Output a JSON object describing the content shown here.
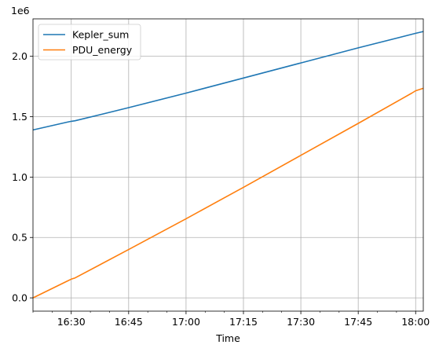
{
  "chart_data": {
    "type": "line",
    "xlabel": "Time",
    "ylabel": "",
    "y_offset_label": "1e6",
    "xlim": [
      "16:20",
      "18:02"
    ],
    "ylim": [
      -0.11,
      2.31
    ],
    "y_scale": 1000000,
    "grid": true,
    "legend_position": "upper-left",
    "x_ticks": [
      "16:30",
      "16:45",
      "17:00",
      "17:15",
      "17:30",
      "17:45",
      "18:00"
    ],
    "x_tick_labels": [
      "16:30",
      "16:45",
      "17:00",
      "17:15",
      "17:30",
      "17:45",
      "18:00"
    ],
    "y_ticks": [
      0.0,
      0.5,
      1.0,
      1.5,
      2.0
    ],
    "y_tick_labels": [
      "0.0",
      "0.5",
      "1.0",
      "1.5",
      "2.0"
    ],
    "series": [
      {
        "name": "Kepler_sum",
        "color": "#1f77b4",
        "x": [
          "16:20",
          "16:29",
          "16:30",
          "16:31",
          "16:45",
          "17:00",
          "17:15",
          "17:30",
          "17:45",
          "18:00",
          "18:02"
        ],
        "y": [
          1.39,
          1.455,
          1.462,
          1.466,
          1.575,
          1.695,
          1.82,
          1.945,
          2.07,
          2.19,
          2.205
        ]
      },
      {
        "name": "PDU_energy",
        "color": "#ff7f0e",
        "x": [
          "16:20",
          "16:29",
          "16:30",
          "16:31",
          "16:45",
          "17:00",
          "17:15",
          "17:30",
          "17:45",
          "17:59",
          "18:00",
          "18:02"
        ],
        "y": [
          0.0,
          0.14,
          0.155,
          0.165,
          0.4,
          0.655,
          0.915,
          1.18,
          1.445,
          1.695,
          1.715,
          1.735
        ]
      }
    ]
  }
}
